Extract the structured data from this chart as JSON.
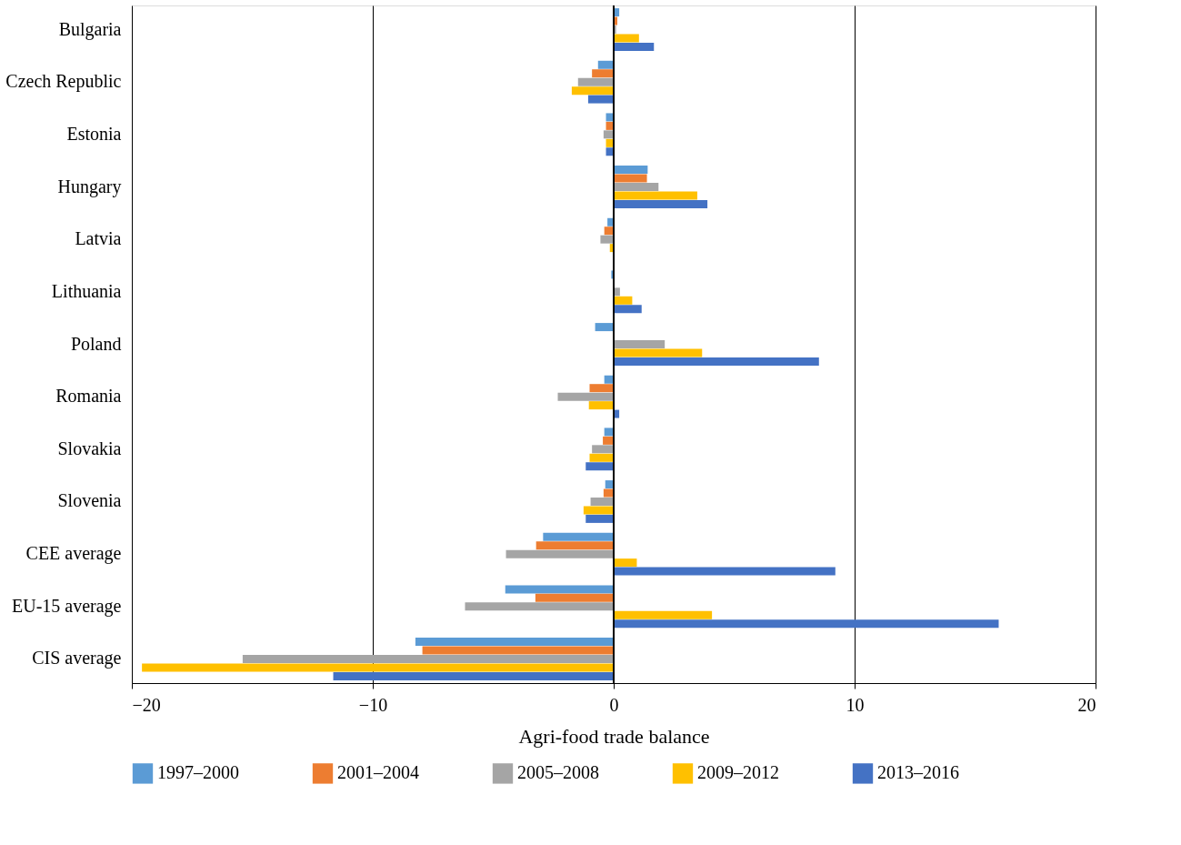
{
  "chart_data": {
    "type": "bar",
    "orientation": "horizontal",
    "xlabel": "Agri-food trade balance",
    "categories": [
      "Bulgaria",
      "Czech Republic",
      "Estonia",
      "Hungary",
      "Latvia",
      "Lithuania",
      "Poland",
      "Romania",
      "Slovakia",
      "Slovenia",
      "CEE average",
      "EU-15 average",
      "CIS average"
    ],
    "series": [
      {
        "name": "1997–2000",
        "color": "#5b9bd5",
        "values": [
          0.23,
          -0.65,
          -0.32,
          1.41,
          -0.26,
          -0.1,
          -0.77,
          -0.39,
          -0.39,
          -0.35,
          -2.93,
          -4.5,
          -8.23
        ]
      },
      {
        "name": "2001–2004",
        "color": "#ed7d31",
        "values": [
          0.15,
          -0.9,
          -0.32,
          1.38,
          -0.39,
          null,
          null,
          -1.0,
          -0.45,
          -0.42,
          -3.22,
          -3.25,
          -7.94
        ]
      },
      {
        "name": "2005–2008",
        "color": "#a5a5a5",
        "values": [
          0.1,
          -1.48,
          -0.42,
          1.86,
          -0.55,
          0.26,
          2.12,
          -2.32,
          -0.9,
          -0.96,
          -4.47,
          -6.17,
          -15.4
        ]
      },
      {
        "name": "2009–2012",
        "color": "#ffc000",
        "values": [
          1.05,
          -1.74,
          -0.32,
          3.47,
          -0.16,
          0.77,
          3.67,
          -1.03,
          -1.0,
          -1.25,
          0.96,
          4.08,
          -19.58
        ]
      },
      {
        "name": "2013–2016",
        "color": "#4472c4",
        "values": [
          1.67,
          -1.06,
          -0.32,
          3.89,
          null,
          1.16,
          8.52,
          0.23,
          -1.16,
          -1.16,
          9.2,
          15.98,
          -11.64
        ]
      }
    ],
    "xlim": [
      -20,
      20
    ],
    "xticks": [
      -20,
      -10,
      0,
      10,
      20
    ],
    "grid": "x",
    "legend": "bottom"
  }
}
